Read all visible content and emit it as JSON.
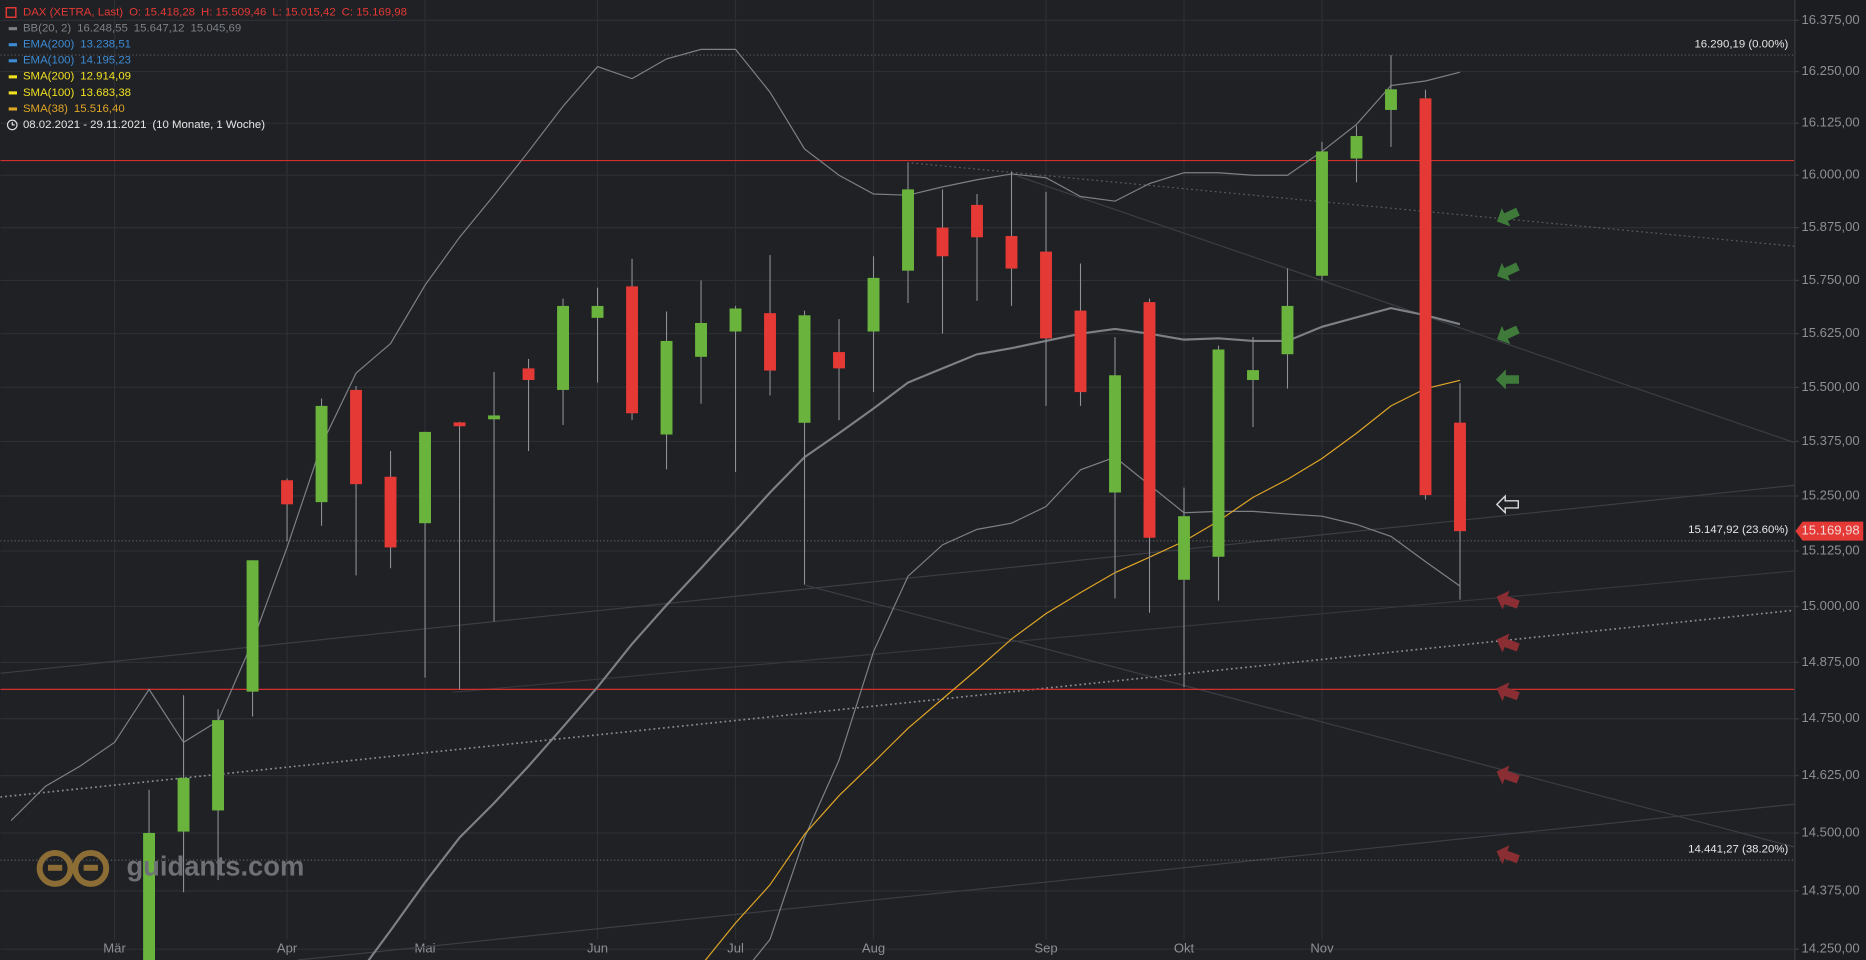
{
  "chart_data": {
    "type": "candlestick",
    "log_scale": true,
    "grid": true,
    "ylim": [
      14227,
      16425
    ],
    "yticks": [
      {
        "value": 14250,
        "label": "14.250,00"
      },
      {
        "value": 14375,
        "label": "14.375,00"
      },
      {
        "value": 14500,
        "label": "14.500,00"
      },
      {
        "value": 14625,
        "label": "14.625,00"
      },
      {
        "value": 14750,
        "label": "14.750,00"
      },
      {
        "value": 14875,
        "label": "14.875,00"
      },
      {
        "value": 15000,
        "label": "15.000,00"
      },
      {
        "value": 15125,
        "label": "15.125,00"
      },
      {
        "value": 15250,
        "label": "15.250,00"
      },
      {
        "value": 15375,
        "label": "15.375,00"
      },
      {
        "value": 15500,
        "label": "15.500,00"
      },
      {
        "value": 15625,
        "label": "15.625,00"
      },
      {
        "value": 15750,
        "label": "15.750,00"
      },
      {
        "value": 15875,
        "label": "15.875,00"
      },
      {
        "value": 16000,
        "label": "16.000,00"
      },
      {
        "value": 16125,
        "label": "16.125,00"
      },
      {
        "value": 16250,
        "label": "16.250,00"
      },
      {
        "value": 16375,
        "label": "16.375,00"
      }
    ],
    "categories": [
      null,
      null,
      null,
      "Mär",
      null,
      null,
      null,
      null,
      "Apr",
      null,
      null,
      null,
      "Mai",
      null,
      null,
      null,
      null,
      "Jun",
      null,
      null,
      null,
      "Jul",
      null,
      null,
      null,
      "Aug",
      null,
      null,
      null,
      null,
      "Sep",
      null,
      null,
      null,
      "Okt",
      null,
      null,
      null,
      "Nov",
      null,
      null,
      null,
      null
    ],
    "candles": {
      "name": "DAX (XETRA, Last)",
      "ohlc_text": {
        "open": "O: 15.418,28",
        "high": "H: 15.509,46",
        "low": "L: 15.015,42",
        "close": "C: 15.169,98"
      },
      "up_color": "#6ab43e",
      "down_color": "#e53935",
      "wick_color": "#9a9c a0",
      "open": [
        null,
        null,
        null,
        null,
        14200,
        14503,
        14549,
        14810,
        15286,
        15236,
        15494,
        15294,
        15188,
        15419,
        15426,
        15544,
        15494,
        15662,
        15736,
        15391,
        15571,
        15630,
        15673,
        15418,
        15582,
        15630,
        15773,
        15875,
        15929,
        15855,
        15818,
        15679,
        15258,
        15699,
        15060,
        15112,
        15517,
        15577,
        15761,
        16040,
        16157,
        16185,
        15418.28
      ],
      "high": [
        null,
        null,
        null,
        null,
        14594,
        14802,
        14771,
        15104,
        15290,
        15474,
        15503,
        15353,
        15397,
        15420,
        15536,
        15566,
        15707,
        15733,
        15801,
        15677,
        15750,
        15690,
        15810,
        15679,
        15659,
        15807,
        16031,
        15966,
        15955,
        16009,
        15960,
        15790,
        15617,
        15707,
        15269,
        15597,
        15617,
        15778,
        16080,
        16119,
        16290.19,
        16206,
        15509.46
      ],
      "low": [
        null,
        null,
        null,
        null,
        14150,
        14372,
        14398,
        14755,
        15147,
        15182,
        15070,
        15086,
        14841,
        14815,
        14966,
        15353,
        15413,
        15511,
        15424,
        15311,
        15462,
        15305,
        15481,
        15049,
        15424,
        15489,
        15697,
        15625,
        15702,
        15690,
        15457,
        15457,
        15018,
        14986,
        14820,
        15013,
        15408,
        15497,
        15750,
        15983,
        16068,
        15242,
        15015.42
      ],
      "close": [
        null,
        null,
        null,
        null,
        14500,
        14620,
        14747,
        15104,
        15231,
        15457,
        15277,
        15133,
        15397,
        15410,
        15435,
        15517,
        15690,
        15690,
        15440,
        15608,
        15650,
        15684,
        15539,
        15668,
        15544,
        15756,
        15966,
        15807,
        15852,
        15778,
        15614,
        15489,
        15528,
        15155,
        15204,
        15588,
        15540,
        15690,
        16057,
        16094,
        16207,
        15252,
        15169.98
      ]
    },
    "indicators": [
      {
        "name": "BB(20, 2)",
        "color": "#7d8085",
        "value_labels": [
          "16.248,55",
          "15.647,12",
          "15.045,69"
        ],
        "lines": [
          {
            "values": [
              14527,
              14602,
              14646,
              14698,
              14815,
              14698,
              14745,
              14921,
              15133,
              15367,
              15533,
              15602,
              15739,
              15852,
              15952,
              16057,
              16166,
              16262,
              16233,
              16281,
              16304,
              16304,
              16200,
              16063,
              16000,
              15955,
              15952,
              15972,
              15989,
              16003,
              15994,
              15949,
              15938,
              15980,
              16006,
              16006,
              16000,
              16000,
              16057,
              16122,
              16216,
              16227,
              16248.55
            ]
          },
          {
            "values": [
              null,
              null,
              null,
              null,
              null,
              null,
              null,
              null,
              null,
              null,
              14190,
              14290,
              14393,
              14490,
              14565,
              14646,
              14732,
              14820,
              14916,
              15003,
              15086,
              15171,
              15258,
              15339,
              15394,
              15451,
              15511,
              15544,
              15577,
              15591,
              15608,
              15625,
              15636,
              15625,
              15611,
              15614,
              15608,
              15608,
              15641,
              15663,
              15685,
              15668,
              15647.12
            ]
          },
          {
            "values": [
              null,
              null,
              null,
              null,
              null,
              null,
              null,
              null,
              null,
              null,
              null,
              null,
              null,
              null,
              null,
              null,
              null,
              null,
              null,
              null,
              null,
              14180,
              14271,
              14490,
              14659,
              14899,
              15068,
              15139,
              15174,
              15188,
              15226,
              15310,
              15339,
              15275,
              15212,
              15215,
              15215,
              15209,
              15204,
              15185,
              15158,
              15101,
              15045.69
            ]
          }
        ]
      },
      {
        "name": "EMA(200)",
        "color": "#3d8bd4",
        "value_label": "13.238,51"
      },
      {
        "name": "EMA(100)",
        "color": "#3d8bd4",
        "value_label": "14.195,23"
      },
      {
        "name": "SMA(200)",
        "color": "#f0e020",
        "value_label": "12.914,09"
      },
      {
        "name": "SMA(100)",
        "color": "#f0e020",
        "value_label": "13.683,38"
      },
      {
        "name": "SMA(38)",
        "color": "#e0a526",
        "value_label": "15.516,40",
        "values": [
          null,
          null,
          null,
          null,
          null,
          null,
          null,
          null,
          null,
          null,
          null,
          null,
          null,
          null,
          null,
          null,
          null,
          null,
          null,
          null,
          14215,
          14306,
          14388,
          14497,
          14581,
          14654,
          14729,
          14794,
          14859,
          14927,
          14984,
          15031,
          15076,
          15111,
          15147,
          15193,
          15247,
          15288,
          15336,
          15394,
          15457,
          15497,
          15516.4
        ]
      }
    ],
    "period": "08.02.2021 - 29.11.2021",
    "period_span": "(10 Monate, 1 Woche)",
    "horizontal_lines": [
      {
        "value": 16035,
        "color": "#d32f2f"
      },
      {
        "value": 14815,
        "color": "#d32f2f"
      }
    ],
    "levels": [
      {
        "value": 16290.19,
        "label": "16.290,19 (0.00%)"
      },
      {
        "value": 15147.92,
        "label": "15.147,92 (23.60%)"
      },
      {
        "value": 14441.27,
        "label": "14.441,27 (38.20%)"
      }
    ],
    "last_price": {
      "value": 15169.98,
      "label": "15.169,98",
      "color": "#e53935"
    },
    "watermark": "guidants.com"
  }
}
